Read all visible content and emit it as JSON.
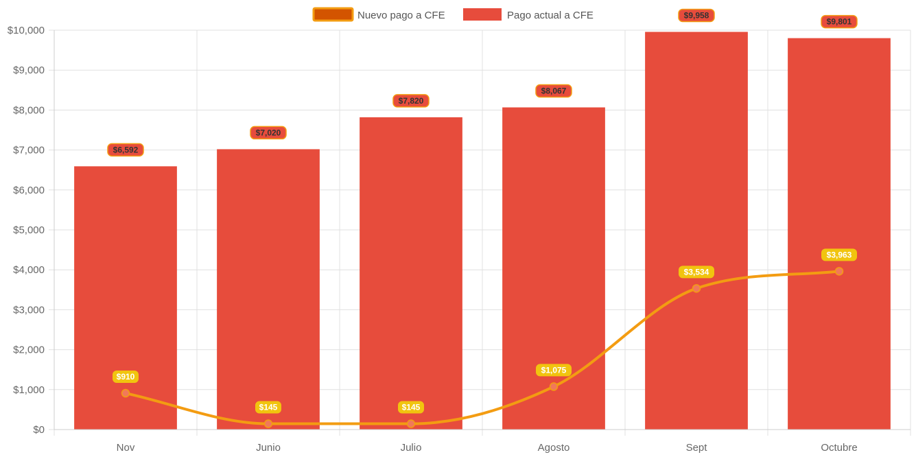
{
  "chart_data": {
    "type": "bar",
    "title": "",
    "xlabel": "",
    "ylabel": "",
    "categories": [
      "Nov",
      "Junio",
      "Julio",
      "Agosto",
      "Sept",
      "Octubre"
    ],
    "ylim": [
      0,
      10000
    ],
    "y_ticks": [
      0,
      1000,
      2000,
      3000,
      4000,
      5000,
      6000,
      7000,
      8000,
      9000,
      10000
    ],
    "y_tick_labels": [
      "$0",
      "$1,000",
      "$2,000",
      "$3,000",
      "$4,000",
      "$5,000",
      "$6,000",
      "$7,000",
      "$8,000",
      "$9,000",
      "$10,000"
    ],
    "grid": true,
    "legend_position": "top-center",
    "series": [
      {
        "name": "Nuevo pago a CFE",
        "type": "line",
        "smooth": true,
        "color": "#f39c12",
        "point_color": "#f1785a",
        "values": [
          910,
          145,
          145,
          1075,
          3534,
          3963
        ],
        "labels": [
          "$910",
          "$145",
          "$145",
          "$1,075",
          "$3,534",
          "$3,963"
        ]
      },
      {
        "name": "Pago actual a CFE",
        "type": "bar",
        "color": "#e74c3c",
        "values": [
          6592,
          7020,
          7820,
          8067,
          9958,
          9801
        ],
        "labels": [
          "$6,592",
          "$7,020",
          "$7,820",
          "$8,067",
          "$9,958",
          "$9,801"
        ]
      }
    ]
  },
  "legend": {
    "line_item": {
      "label": "Nuevo pago a CFE",
      "swatch_fill": "#d35400",
      "swatch_border": "#f39c12"
    },
    "bar_item": {
      "label": "Pago actual a CFE",
      "swatch_fill": "#e74c3c"
    }
  },
  "colors": {
    "grid": "#e0e0e0",
    "axis": "#cccccc",
    "bar_label_bg": "#e74c3c",
    "bar_label_border": "#f39c12",
    "bar_label_text": "#333333",
    "line_label_bg": "#f1c40f",
    "line_label_text": "#ffffff"
  }
}
